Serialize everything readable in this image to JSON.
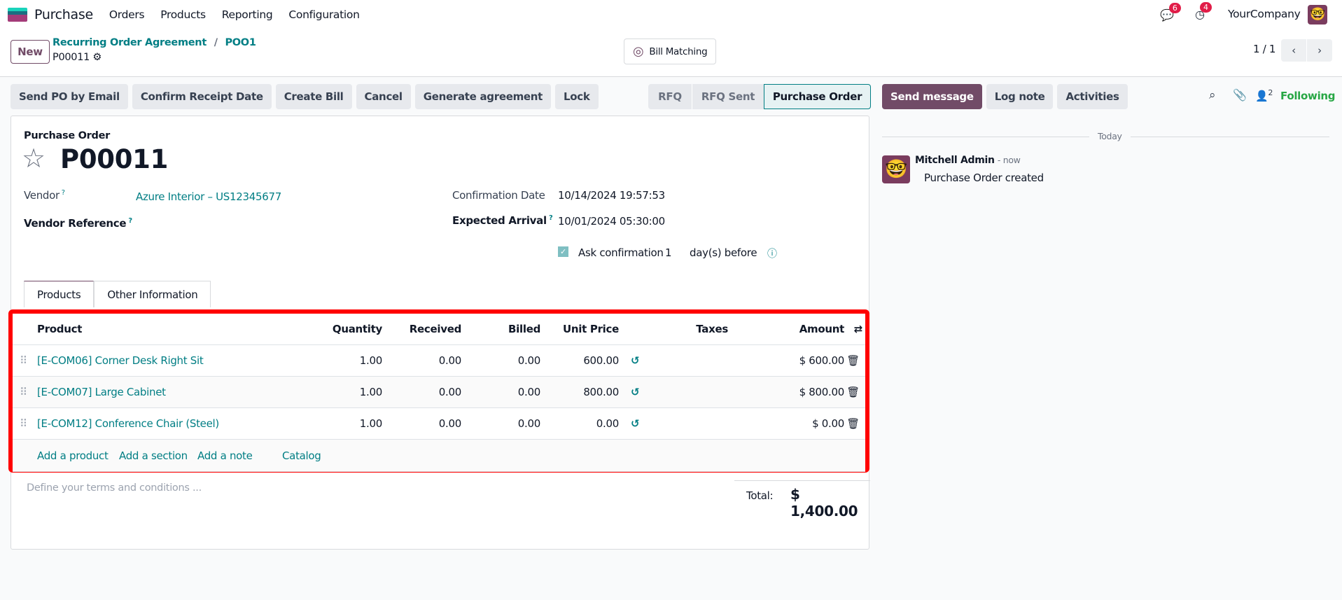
{
  "nav": {
    "app": "Purchase",
    "menu": [
      "Orders",
      "Products",
      "Reporting",
      "Configuration"
    ],
    "messages_count": "6",
    "activities_count": "4",
    "company": "YourCompany"
  },
  "control": {
    "new_label": "New",
    "breadcrumb": [
      "Recurring Order Agreement",
      "POO1"
    ],
    "record": "P00011",
    "bill_matching": "Bill Matching",
    "pager": "1 / 1"
  },
  "actions": [
    "Send PO by Email",
    "Confirm Receipt Date",
    "Create Bill",
    "Cancel",
    "Generate agreement",
    "Lock"
  ],
  "status": {
    "steps": [
      "RFQ",
      "RFQ Sent",
      "Purchase Order"
    ],
    "active": "Purchase Order"
  },
  "chatter": {
    "send": "Send message",
    "log": "Log note",
    "activities": "Activities",
    "followers": "2",
    "following": "Following",
    "divider": "Today",
    "author": "Mitchell Admin",
    "time": "- now",
    "message": "Purchase Order created"
  },
  "form": {
    "subtitle": "Purchase Order",
    "name": "P00011",
    "vendor_label": "Vendor",
    "vendor": "Azure Interior – US12345677",
    "vendor_ref_label": "Vendor Reference",
    "conf_label": "Confirmation Date",
    "conf": "10/14/2024 19:57:53",
    "arrival_label": "Expected Arrival",
    "arrival": "10/01/2024 05:30:00",
    "ask_label": "Ask confirmation",
    "ask_days": "1",
    "ask_suffix": "day(s) before",
    "tabs": [
      "Products",
      "Other Information"
    ],
    "active_tab": "Products"
  },
  "table": {
    "headers": [
      "Product",
      "Quantity",
      "Received",
      "Billed",
      "Unit Price",
      "Taxes",
      "Amount"
    ],
    "rows": [
      {
        "product": "[E-COM06] Corner Desk Right Sit",
        "qty": "1.00",
        "received": "0.00",
        "billed": "0.00",
        "price": "600.00",
        "amount": "$ 600.00"
      },
      {
        "product": "[E-COM07] Large Cabinet",
        "qty": "1.00",
        "received": "0.00",
        "billed": "0.00",
        "price": "800.00",
        "amount": "$ 800.00"
      },
      {
        "product": "[E-COM12] Conference Chair (Steel)",
        "qty": "1.00",
        "received": "0.00",
        "billed": "0.00",
        "price": "0.00",
        "amount": "$ 0.00"
      }
    ],
    "add": [
      "Add a product",
      "Add a section",
      "Add a note",
      "Catalog"
    ]
  },
  "footer": {
    "terms_placeholder": "Define your terms and conditions ...",
    "total_label": "Total:",
    "total": "$ 1,400.00"
  },
  "colors": {
    "brand": "#714b67",
    "link": "#017e84",
    "highlight": "#ff0000"
  }
}
